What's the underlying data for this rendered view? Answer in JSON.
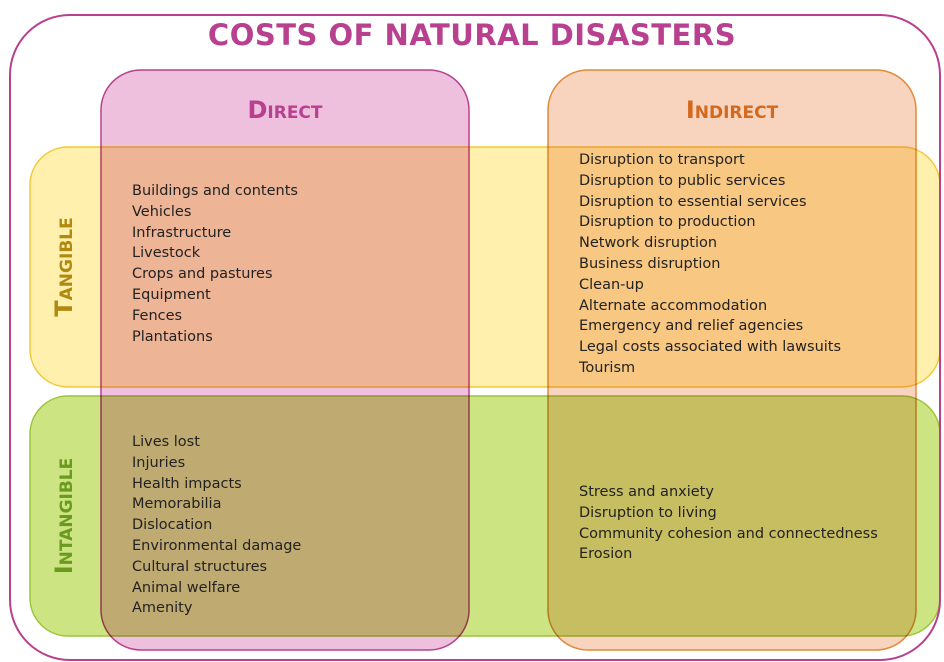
{
  "title": "COSTS OF NATURAL DISASTERS",
  "columns": [
    "Direct",
    "Indirect"
  ],
  "rows": [
    "Tangible",
    "Intangible"
  ],
  "cells": [
    [
      [
        "Buildings and contents",
        "Vehicles",
        "Infrastructure",
        "Livestock",
        "Crops and pastures",
        "Equipment",
        "Fences",
        "Plantations"
      ],
      [
        "Disruption to transport",
        "Disruption to public services",
        "Disruption to essential services",
        "Disruption to production",
        "Network disruption",
        "Business disruption",
        "Clean-up",
        "Alternate accommodation",
        "Emergency and relief agencies",
        "Legal costs associated with lawsuits",
        "Tourism"
      ]
    ],
    [
      [
        "Lives lost",
        "Injuries",
        "Health impacts",
        "Memorabilia",
        "Dislocation",
        "Environmental damage",
        "Cultural structures",
        "Animal welfare",
        "Amenity"
      ],
      [
        "Stress and anxiety",
        "Disruption to living",
        "Community cohesion and connectedness",
        "Erosion"
      ]
    ]
  ]
}
